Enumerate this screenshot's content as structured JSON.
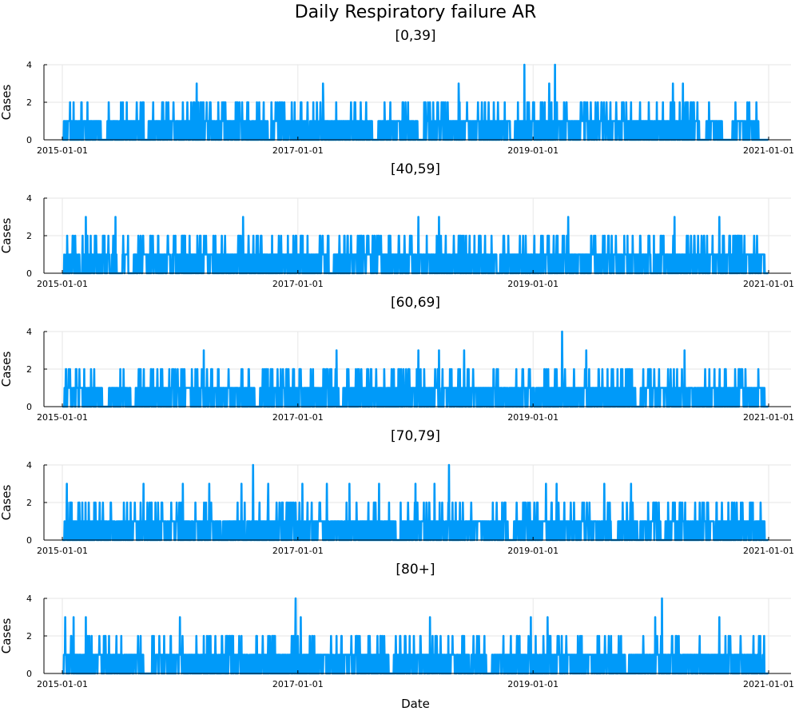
{
  "figure": {
    "title": "Daily Respiratory failure AR",
    "xlabel": "Date"
  },
  "colors": {
    "series": "#009af9",
    "axis": "#000000",
    "grid": "#e6e6e6",
    "background": "#ffffff"
  },
  "chart_data": [
    {
      "type": "line",
      "title": "[0,39]",
      "ylabel": "Cases",
      "xlabel": "",
      "x_range": [
        "2015-01-01",
        "2021-01-01"
      ],
      "x_ticks": [
        "2015-01-01",
        "2017-01-01",
        "2019-01-01",
        "2021-01-01"
      ],
      "ylim": [
        0,
        4
      ],
      "y_ticks": [
        "0",
        "2",
        "4"
      ],
      "grid": true,
      "series": [
        {
          "x_start": "2015-01-01",
          "x_end": "2020-12-31",
          "daily_values_baseline": 0,
          "peaks": [
            {
              "x": "2015-01-25",
              "y": 2
            },
            {
              "x": "2015-03-01",
              "y": 2
            },
            {
              "x": "2015-08-20",
              "y": 2
            },
            {
              "x": "2015-09-10",
              "y": 2
            },
            {
              "x": "2016-01-10",
              "y": 2
            },
            {
              "x": "2016-02-05",
              "y": 2
            },
            {
              "x": "2016-02-22",
              "y": 3
            },
            {
              "x": "2016-03-05",
              "y": 2
            },
            {
              "x": "2016-11-20",
              "y": 2
            },
            {
              "x": "2017-01-10",
              "y": 2
            },
            {
              "x": "2017-03-01",
              "y": 2
            },
            {
              "x": "2017-03-20",
              "y": 3
            },
            {
              "x": "2017-06-15",
              "y": 2
            },
            {
              "x": "2017-08-01",
              "y": 2
            },
            {
              "x": "2017-12-01",
              "y": 2
            },
            {
              "x": "2018-03-10",
              "y": 2
            },
            {
              "x": "2018-05-15",
              "y": 3
            },
            {
              "x": "2018-09-01",
              "y": 2
            },
            {
              "x": "2018-11-15",
              "y": 2
            },
            {
              "x": "2019-01-01",
              "y": 2
            },
            {
              "x": "2018-12-05",
              "y": 4
            },
            {
              "x": "2019-01-25",
              "y": 2
            },
            {
              "x": "2019-02-20",
              "y": 3
            },
            {
              "x": "2019-03-10",
              "y": 4
            },
            {
              "x": "2019-06-10",
              "y": 2
            },
            {
              "x": "2019-11-01",
              "y": 2
            },
            {
              "x": "2020-01-20",
              "y": 2
            },
            {
              "x": "2020-03-10",
              "y": 3
            },
            {
              "x": "2020-04-10",
              "y": 3
            },
            {
              "x": "2020-04-25",
              "y": 2
            }
          ],
          "gaps": [
            [
              "2015-01-01",
              "2015-01-05"
            ],
            [
              "2015-05-01",
              "2015-05-20"
            ],
            [
              "2015-09-10",
              "2015-09-25"
            ],
            [
              "2016-10-01",
              "2016-10-10"
            ],
            [
              "2017-08-20",
              "2017-09-05"
            ],
            [
              "2018-01-10",
              "2018-01-25"
            ],
            [
              "2018-10-25",
              "2018-11-05"
            ],
            [
              "2020-06-01",
              "2020-06-20"
            ],
            [
              "2020-08-10",
              "2020-09-10"
            ],
            [
              "2020-12-01",
              "2020-12-31"
            ]
          ]
        }
      ]
    },
    {
      "type": "line",
      "title": "[40,59]",
      "ylabel": "Cases",
      "xlabel": "",
      "x_range": [
        "2015-01-01",
        "2021-01-01"
      ],
      "x_ticks": [
        "2015-01-01",
        "2017-01-01",
        "2019-01-01",
        "2021-01-01"
      ],
      "ylim": [
        0,
        4
      ],
      "y_ticks": [
        "0",
        "2",
        "4"
      ],
      "grid": true,
      "series": [
        {
          "x_start": "2015-01-01",
          "x_end": "2020-12-31",
          "daily_values_baseline": 0,
          "peaks": [
            {
              "x": "2015-02-10",
              "y": 2
            },
            {
              "x": "2015-03-15",
              "y": 3
            },
            {
              "x": "2015-04-15",
              "y": 2
            },
            {
              "x": "2015-05-10",
              "y": 2
            },
            {
              "x": "2015-06-15",
              "y": 3
            },
            {
              "x": "2015-10-01",
              "y": 2
            },
            {
              "x": "2016-01-10",
              "y": 2
            },
            {
              "x": "2016-05-10",
              "y": 2
            },
            {
              "x": "2016-07-15",
              "y": 3
            },
            {
              "x": "2016-09-10",
              "y": 2
            },
            {
              "x": "2016-11-10",
              "y": 2
            },
            {
              "x": "2017-01-10",
              "y": 2
            },
            {
              "x": "2017-03-10",
              "y": 2
            },
            {
              "x": "2017-05-10",
              "y": 2
            },
            {
              "x": "2017-07-15",
              "y": 2
            },
            {
              "x": "2018-01-10",
              "y": 3
            },
            {
              "x": "2018-02-05",
              "y": 2
            },
            {
              "x": "2018-03-15",
              "y": 3
            },
            {
              "x": "2018-05-15",
              "y": 2
            },
            {
              "x": "2018-10-01",
              "y": 2
            },
            {
              "x": "2019-03-15",
              "y": 2
            },
            {
              "x": "2019-04-20",
              "y": 3
            },
            {
              "x": "2019-07-01",
              "y": 2
            },
            {
              "x": "2019-09-15",
              "y": 2
            },
            {
              "x": "2020-02-10",
              "y": 2
            },
            {
              "x": "2020-03-15",
              "y": 3
            },
            {
              "x": "2020-08-01",
              "y": 3
            },
            {
              "x": "2020-09-01",
              "y": 2
            }
          ],
          "gaps": [
            [
              "2015-01-01",
              "2015-01-05"
            ],
            [
              "2015-06-20",
              "2015-07-05"
            ],
            [
              "2015-07-25",
              "2015-08-10"
            ],
            [
              "2017-04-10",
              "2017-04-20"
            ],
            [
              "2018-09-10",
              "2018-09-20"
            ],
            [
              "2020-01-01",
              "2020-01-10"
            ],
            [
              "2020-12-20",
              "2020-12-31"
            ]
          ]
        }
      ]
    },
    {
      "type": "line",
      "title": "[60,69]",
      "ylabel": "Cases",
      "xlabel": "",
      "x_range": [
        "2015-01-01",
        "2021-01-01"
      ],
      "x_ticks": [
        "2015-01-01",
        "2017-01-01",
        "2019-01-01",
        "2021-01-01"
      ],
      "ylim": [
        0,
        4
      ],
      "y_ticks": [
        "0",
        "2",
        "4"
      ],
      "grid": true,
      "series": [
        {
          "x_start": "2015-01-01",
          "x_end": "2020-12-31",
          "daily_values_baseline": 0,
          "peaks": [
            {
              "x": "2015-01-25",
              "y": 2
            },
            {
              "x": "2015-03-10",
              "y": 2
            },
            {
              "x": "2015-04-10",
              "y": 2
            },
            {
              "x": "2015-09-01",
              "y": 2
            },
            {
              "x": "2016-01-10",
              "y": 2
            },
            {
              "x": "2016-03-15",
              "y": 3
            },
            {
              "x": "2016-04-10",
              "y": 2
            },
            {
              "x": "2016-07-10",
              "y": 2
            },
            {
              "x": "2016-10-10",
              "y": 2
            },
            {
              "x": "2017-01-10",
              "y": 2
            },
            {
              "x": "2017-05-01",
              "y": 3
            },
            {
              "x": "2017-08-15",
              "y": 2
            },
            {
              "x": "2018-01-10",
              "y": 3
            },
            {
              "x": "2018-03-15",
              "y": 3
            },
            {
              "x": "2018-06-01",
              "y": 3
            },
            {
              "x": "2018-09-01",
              "y": 2
            },
            {
              "x": "2019-03-10",
              "y": 2
            },
            {
              "x": "2019-04-01",
              "y": 4
            },
            {
              "x": "2019-06-15",
              "y": 3
            },
            {
              "x": "2019-10-01",
              "y": 2
            },
            {
              "x": "2020-04-15",
              "y": 3
            },
            {
              "x": "2020-07-01",
              "y": 2
            }
          ],
          "gaps": [
            [
              "2015-01-01",
              "2015-01-05"
            ],
            [
              "2015-05-10",
              "2015-05-25"
            ],
            [
              "2015-08-01",
              "2015-08-15"
            ],
            [
              "2016-08-20",
              "2016-09-05"
            ],
            [
              "2017-05-10",
              "2017-05-20"
            ],
            [
              "2019-11-15",
              "2019-11-30"
            ],
            [
              "2020-12-20",
              "2020-12-31"
            ]
          ]
        }
      ]
    },
    {
      "type": "line",
      "title": "[70,79]",
      "ylabel": "Cases",
      "xlabel": "",
      "x_range": [
        "2015-01-01",
        "2021-01-01"
      ],
      "x_ticks": [
        "2015-01-01",
        "2017-01-01",
        "2019-01-01",
        "2021-01-01"
      ],
      "ylim": [
        0,
        4
      ],
      "y_ticks": [
        "0",
        "2",
        "4"
      ],
      "grid": true,
      "series": [
        {
          "x_start": "2015-01-01",
          "x_end": "2020-12-31",
          "daily_values_baseline": 0,
          "peaks": [
            {
              "x": "2015-01-15",
              "y": 3
            },
            {
              "x": "2015-04-10",
              "y": 2
            },
            {
              "x": "2015-06-01",
              "y": 2
            },
            {
              "x": "2015-09-10",
              "y": 3
            },
            {
              "x": "2016-01-10",
              "y": 3
            },
            {
              "x": "2016-04-01",
              "y": 3
            },
            {
              "x": "2016-07-10",
              "y": 3
            },
            {
              "x": "2016-08-15",
              "y": 4
            },
            {
              "x": "2016-10-01",
              "y": 3
            },
            {
              "x": "2017-01-15",
              "y": 3
            },
            {
              "x": "2017-04-01",
              "y": 3
            },
            {
              "x": "2017-06-10",
              "y": 3
            },
            {
              "x": "2017-09-10",
              "y": 3
            },
            {
              "x": "2018-01-01",
              "y": 3
            },
            {
              "x": "2018-03-01",
              "y": 3
            },
            {
              "x": "2018-04-15",
              "y": 4
            },
            {
              "x": "2019-01-15",
              "y": 2
            },
            {
              "x": "2019-02-10",
              "y": 3
            },
            {
              "x": "2019-03-15",
              "y": 3
            },
            {
              "x": "2019-08-10",
              "y": 3
            },
            {
              "x": "2019-11-01",
              "y": 3
            },
            {
              "x": "2020-03-10",
              "y": 2
            },
            {
              "x": "2020-06-01",
              "y": 2
            }
          ],
          "gaps": [
            [
              "2015-01-01",
              "2015-01-05"
            ],
            [
              "2017-11-01",
              "2017-11-15"
            ],
            [
              "2018-10-15",
              "2018-11-01"
            ],
            [
              "2019-09-01",
              "2019-09-20"
            ],
            [
              "2020-02-01",
              "2020-02-15"
            ],
            [
              "2020-12-20",
              "2020-12-31"
            ]
          ]
        }
      ]
    },
    {
      "type": "line",
      "title": "[80+]",
      "ylabel": "Cases",
      "xlabel": "Date",
      "x_range": [
        "2015-01-01",
        "2021-01-01"
      ],
      "x_ticks": [
        "2015-01-01",
        "2017-01-01",
        "2019-01-01",
        "2021-01-01"
      ],
      "ylim": [
        0,
        4
      ],
      "y_ticks": [
        "0",
        "2",
        "4"
      ],
      "grid": true,
      "series": [
        {
          "x_start": "2015-01-01",
          "x_end": "2020-12-31",
          "daily_values_baseline": 0,
          "peaks": [
            {
              "x": "2015-01-10",
              "y": 3
            },
            {
              "x": "2015-02-05",
              "y": 3
            },
            {
              "x": "2015-03-15",
              "y": 3
            },
            {
              "x": "2015-05-10",
              "y": 2
            },
            {
              "x": "2015-09-01",
              "y": 2
            },
            {
              "x": "2016-01-01",
              "y": 3
            },
            {
              "x": "2016-03-15",
              "y": 2
            },
            {
              "x": "2016-07-10",
              "y": 2
            },
            {
              "x": "2016-10-01",
              "y": 2
            },
            {
              "x": "2016-12-25",
              "y": 4
            },
            {
              "x": "2017-01-10",
              "y": 3
            },
            {
              "x": "2017-05-01",
              "y": 2
            },
            {
              "x": "2017-09-15",
              "y": 2
            },
            {
              "x": "2018-02-15",
              "y": 3
            },
            {
              "x": "2018-06-01",
              "y": 2
            },
            {
              "x": "2018-10-01",
              "y": 2
            },
            {
              "x": "2018-12-25",
              "y": 3
            },
            {
              "x": "2019-02-15",
              "y": 3
            },
            {
              "x": "2019-06-01",
              "y": 2
            },
            {
              "x": "2019-10-01",
              "y": 2
            },
            {
              "x": "2020-01-15",
              "y": 3
            },
            {
              "x": "2020-02-05",
              "y": 4
            },
            {
              "x": "2020-06-01",
              "y": 2
            },
            {
              "x": "2020-08-01",
              "y": 3
            },
            {
              "x": "2020-11-15",
              "y": 2
            }
          ],
          "gaps": [
            [
              "2015-01-01",
              "2015-01-05"
            ],
            [
              "2015-09-10",
              "2015-10-05"
            ],
            [
              "2017-10-10",
              "2017-10-25"
            ],
            [
              "2018-08-10",
              "2018-08-25"
            ],
            [
              "2019-10-15",
              "2019-10-25"
            ],
            [
              "2020-12-20",
              "2020-12-31"
            ]
          ]
        }
      ]
    }
  ]
}
